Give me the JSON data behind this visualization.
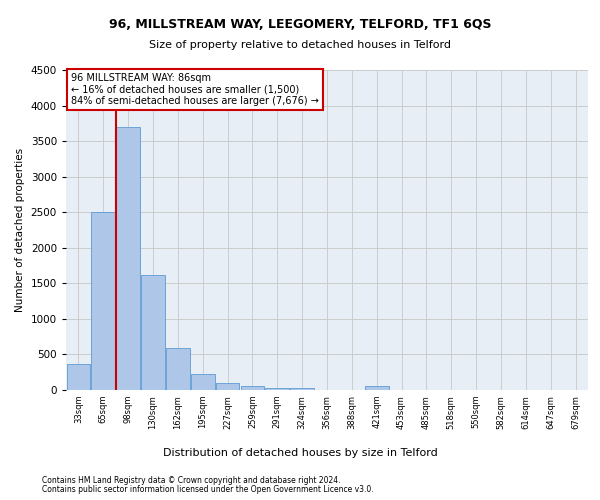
{
  "title_line1": "96, MILLSTREAM WAY, LEEGOMERY, TELFORD, TF1 6QS",
  "title_line2": "Size of property relative to detached houses in Telford",
  "xlabel": "Distribution of detached houses by size in Telford",
  "ylabel": "Number of detached properties",
  "footnote1": "Contains HM Land Registry data © Crown copyright and database right 2024.",
  "footnote2": "Contains public sector information licensed under the Open Government Licence v3.0.",
  "bar_labels": [
    "33sqm",
    "65sqm",
    "98sqm",
    "130sqm",
    "162sqm",
    "195sqm",
    "227sqm",
    "259sqm",
    "291sqm",
    "324sqm",
    "356sqm",
    "388sqm",
    "421sqm",
    "453sqm",
    "485sqm",
    "518sqm",
    "550sqm",
    "582sqm",
    "614sqm",
    "647sqm",
    "679sqm"
  ],
  "bar_values": [
    370,
    2500,
    3700,
    1620,
    590,
    230,
    105,
    60,
    35,
    30,
    0,
    0,
    60,
    0,
    0,
    0,
    0,
    0,
    0,
    0,
    0
  ],
  "bar_color": "#aec6e8",
  "bar_edgecolor": "#5b9bd5",
  "vline_index": 1.5,
  "annotation_text": "96 MILLSTREAM WAY: 86sqm\n← 16% of detached houses are smaller (1,500)\n84% of semi-detached houses are larger (7,676) →",
  "annotation_box_color": "#ffffff",
  "annotation_box_edgecolor": "#cc0000",
  "ylim": [
    0,
    4500
  ],
  "yticks": [
    0,
    500,
    1000,
    1500,
    2000,
    2500,
    3000,
    3500,
    4000,
    4500
  ],
  "vline_color": "#cc0000",
  "grid_color": "#cccccc",
  "bg_color": "#e8eef5"
}
